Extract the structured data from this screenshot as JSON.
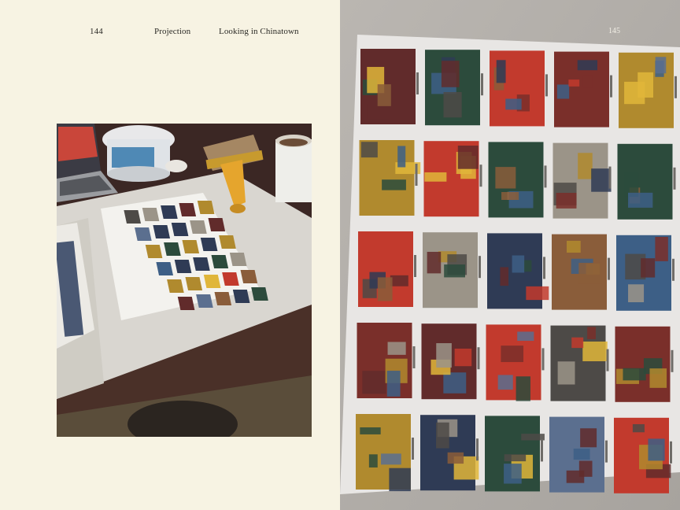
{
  "spread": {
    "left_page": {
      "page_number": "144",
      "section": "Projection",
      "chapter": "Looking in Chinatown",
      "photo": {
        "subject": "desk-with-printed-contact-sheet",
        "icons": [
          "laptop",
          "paint-bucket",
          "paintbrush",
          "mug",
          "contact-sheet"
        ]
      }
    },
    "right_page": {
      "page_number": "145",
      "photo": {
        "subject": "laminated-print-grid-on-floor",
        "grid": {
          "columns": 5,
          "rows": 5
        }
      }
    }
  },
  "colors": {
    "paper": "#f7f3e3",
    "text": "#2b2a26",
    "floor": "#b5b1ab"
  }
}
